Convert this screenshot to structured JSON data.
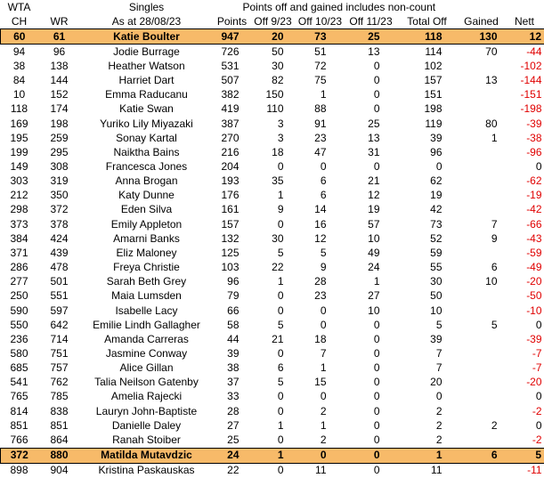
{
  "colors": {
    "highlight_fill": "#F7BA69",
    "highlight_border": "#000000",
    "negative_text": "#E00000",
    "default_text": "#000000",
    "background": "#FFFFFF"
  },
  "table": {
    "corner_label": "WTA",
    "singles_label": "Singles",
    "banner": "Points off and gained includes non-count",
    "columns": [
      "CH",
      "WR",
      "As at 28/08/23",
      "Points",
      "Off 9/23",
      "Off 10/23",
      "Off 11/23",
      "Total Off",
      "Gained",
      "Nett"
    ],
    "rows": [
      {
        "ch": 60,
        "wr": 61,
        "name": "Katie Boulter",
        "points": 947,
        "o9": 20,
        "o10": 73,
        "o11": 25,
        "total": 118,
        "gained": 130,
        "nett": 12,
        "highlight": true
      },
      {
        "ch": 94,
        "wr": 96,
        "name": "Jodie Burrage",
        "points": 726,
        "o9": 50,
        "o10": 51,
        "o11": 13,
        "total": 114,
        "gained": 70,
        "nett": -44,
        "highlight": false
      },
      {
        "ch": 38,
        "wr": 138,
        "name": "Heather Watson",
        "points": 531,
        "o9": 30,
        "o10": 72,
        "o11": 0,
        "total": 102,
        "gained": "",
        "nett": -102,
        "highlight": false
      },
      {
        "ch": 84,
        "wr": 144,
        "name": "Harriet Dart",
        "points": 507,
        "o9": 82,
        "o10": 75,
        "o11": 0,
        "total": 157,
        "gained": 13,
        "nett": -144,
        "highlight": false
      },
      {
        "ch": 10,
        "wr": 152,
        "name": "Emma Raducanu",
        "points": 382,
        "o9": 150,
        "o10": 1,
        "o11": 0,
        "total": 151,
        "gained": "",
        "nett": -151,
        "highlight": false
      },
      {
        "ch": 118,
        "wr": 174,
        "name": "Katie Swan",
        "points": 419,
        "o9": 110,
        "o10": 88,
        "o11": 0,
        "total": 198,
        "gained": "",
        "nett": -198,
        "highlight": false
      },
      {
        "ch": 169,
        "wr": 198,
        "name": "Yuriko Lily Miyazaki",
        "points": 387,
        "o9": 3,
        "o10": 91,
        "o11": 25,
        "total": 119,
        "gained": 80,
        "nett": -39,
        "highlight": false
      },
      {
        "ch": 195,
        "wr": 259,
        "name": "Sonay Kartal",
        "points": 270,
        "o9": 3,
        "o10": 23,
        "o11": 13,
        "total": 39,
        "gained": 1,
        "nett": -38,
        "highlight": false
      },
      {
        "ch": 199,
        "wr": 295,
        "name": "Naiktha Bains",
        "points": 216,
        "o9": 18,
        "o10": 47,
        "o11": 31,
        "total": 96,
        "gained": "",
        "nett": -96,
        "highlight": false
      },
      {
        "ch": 149,
        "wr": 308,
        "name": "Francesca Jones",
        "points": 204,
        "o9": 0,
        "o10": 0,
        "o11": 0,
        "total": 0,
        "gained": "",
        "nett": 0,
        "highlight": false
      },
      {
        "ch": 303,
        "wr": 319,
        "name": "Anna Brogan",
        "points": 193,
        "o9": 35,
        "o10": 6,
        "o11": 21,
        "total": 62,
        "gained": "",
        "nett": -62,
        "highlight": false
      },
      {
        "ch": 212,
        "wr": 350,
        "name": "Katy Dunne",
        "points": 176,
        "o9": 1,
        "o10": 6,
        "o11": 12,
        "total": 19,
        "gained": "",
        "nett": -19,
        "highlight": false
      },
      {
        "ch": 298,
        "wr": 372,
        "name": "Eden Silva",
        "points": 161,
        "o9": 9,
        "o10": 14,
        "o11": 19,
        "total": 42,
        "gained": "",
        "nett": -42,
        "highlight": false
      },
      {
        "ch": 373,
        "wr": 378,
        "name": "Emily Appleton",
        "points": 157,
        "o9": 0,
        "o10": 16,
        "o11": 57,
        "total": 73,
        "gained": 7,
        "nett": -66,
        "highlight": false
      },
      {
        "ch": 384,
        "wr": 424,
        "name": "Amarni Banks",
        "points": 132,
        "o9": 30,
        "o10": 12,
        "o11": 10,
        "total": 52,
        "gained": 9,
        "nett": -43,
        "highlight": false
      },
      {
        "ch": 371,
        "wr": 439,
        "name": "Eliz Maloney",
        "points": 125,
        "o9": 5,
        "o10": 5,
        "o11": 49,
        "total": 59,
        "gained": "",
        "nett": -59,
        "highlight": false
      },
      {
        "ch": 286,
        "wr": 478,
        "name": "Freya Christie",
        "points": 103,
        "o9": 22,
        "o10": 9,
        "o11": 24,
        "total": 55,
        "gained": 6,
        "nett": -49,
        "highlight": false
      },
      {
        "ch": 277,
        "wr": 501,
        "name": "Sarah Beth Grey",
        "points": 96,
        "o9": 1,
        "o10": 28,
        "o11": 1,
        "total": 30,
        "gained": 10,
        "nett": -20,
        "highlight": false
      },
      {
        "ch": 250,
        "wr": 551,
        "name": "Maia Lumsden",
        "points": 79,
        "o9": 0,
        "o10": 23,
        "o11": 27,
        "total": 50,
        "gained": "",
        "nett": -50,
        "highlight": false
      },
      {
        "ch": 590,
        "wr": 597,
        "name": "Isabelle Lacy",
        "points": 66,
        "o9": 0,
        "o10": 0,
        "o11": 10,
        "total": 10,
        "gained": "",
        "nett": -10,
        "highlight": false
      },
      {
        "ch": 550,
        "wr": 642,
        "name": "Emilie Lindh Gallagher",
        "points": 58,
        "o9": 5,
        "o10": 0,
        "o11": 0,
        "total": 5,
        "gained": 5,
        "nett": 0,
        "highlight": false
      },
      {
        "ch": 236,
        "wr": 714,
        "name": "Amanda Carreras",
        "points": 44,
        "o9": 21,
        "o10": 18,
        "o11": 0,
        "total": 39,
        "gained": "",
        "nett": -39,
        "highlight": false
      },
      {
        "ch": 580,
        "wr": 751,
        "name": "Jasmine Conway",
        "points": 39,
        "o9": 0,
        "o10": 7,
        "o11": 0,
        "total": 7,
        "gained": "",
        "nett": -7,
        "highlight": false
      },
      {
        "ch": 685,
        "wr": 757,
        "name": "Alice Gillan",
        "points": 38,
        "o9": 6,
        "o10": 1,
        "o11": 0,
        "total": 7,
        "gained": "",
        "nett": -7,
        "highlight": false
      },
      {
        "ch": 541,
        "wr": 762,
        "name": "Talia Neilson Gatenby",
        "points": 37,
        "o9": 5,
        "o10": 15,
        "o11": 0,
        "total": 20,
        "gained": "",
        "nett": -20,
        "highlight": false
      },
      {
        "ch": 765,
        "wr": 785,
        "name": "Amelia Rajecki",
        "points": 33,
        "o9": 0,
        "o10": 0,
        "o11": 0,
        "total": 0,
        "gained": "",
        "nett": 0,
        "highlight": false
      },
      {
        "ch": 814,
        "wr": 838,
        "name": "Lauryn John-Baptiste",
        "points": 28,
        "o9": 0,
        "o10": 2,
        "o11": 0,
        "total": 2,
        "gained": "",
        "nett": -2,
        "highlight": false
      },
      {
        "ch": 851,
        "wr": 851,
        "name": "Danielle Daley",
        "points": 27,
        "o9": 1,
        "o10": 1,
        "o11": 0,
        "total": 2,
        "gained": 2,
        "nett": 0,
        "highlight": false
      },
      {
        "ch": 766,
        "wr": 864,
        "name": "Ranah Stoiber",
        "points": 25,
        "o9": 0,
        "o10": 2,
        "o11": 0,
        "total": 2,
        "gained": "",
        "nett": -2,
        "highlight": false
      },
      {
        "ch": 372,
        "wr": 880,
        "name": "Matilda Mutavdzic",
        "points": 24,
        "o9": 1,
        "o10": 0,
        "o11": 0,
        "total": 1,
        "gained": 6,
        "nett": 5,
        "highlight": true
      },
      {
        "ch": 898,
        "wr": 904,
        "name": "Kristina Paskauskas",
        "points": 22,
        "o9": 0,
        "o10": 11,
        "o11": 0,
        "total": 11,
        "gained": "",
        "nett": -11,
        "highlight": false
      }
    ]
  }
}
